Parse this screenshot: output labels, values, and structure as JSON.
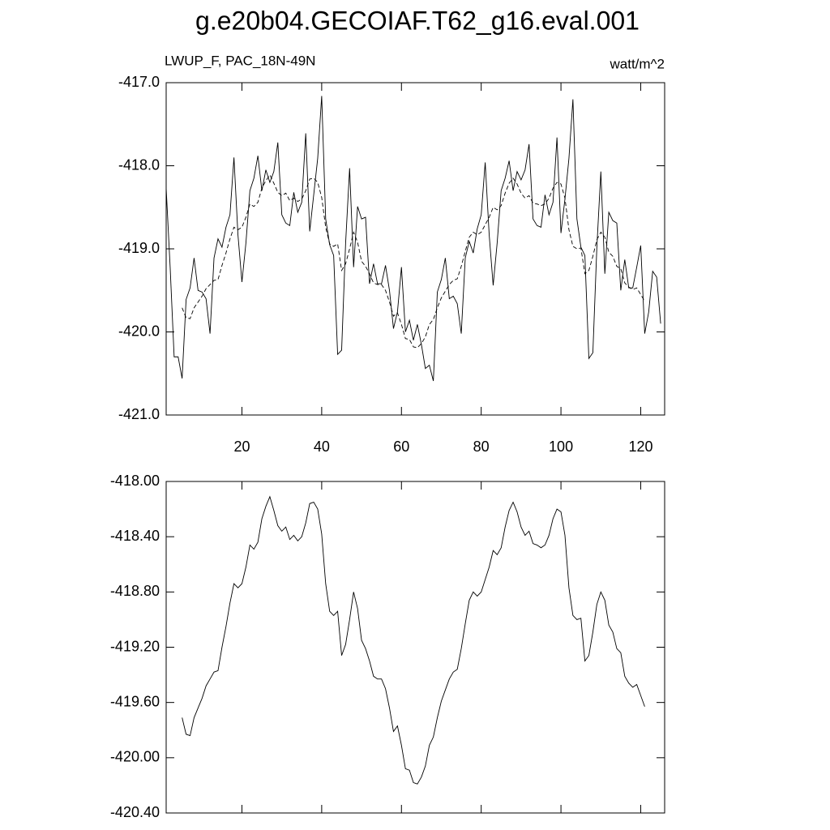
{
  "chart_data": [
    {
      "type": "line",
      "title": "g.e20b04.GECOIAF.T62_g16.eval.001",
      "left_subtitle": "LWUP_F, PAC_18N-49N",
      "right_subtitle": "watt/m^2",
      "xlim": [
        1,
        126
      ],
      "ylim": [
        -421,
        -417
      ],
      "xticks": [
        20,
        40,
        60,
        80,
        100,
        120
      ],
      "yticks": [
        {
          "value": -417,
          "label": "-417.0"
        },
        {
          "value": -418,
          "label": "-418.0"
        },
        {
          "value": -419,
          "label": "-419.0"
        },
        {
          "value": -420,
          "label": "-420.0"
        },
        {
          "value": -421,
          "label": "-421.0"
        }
      ],
      "series": [
        {
          "color": "#000000",
          "line_style": "solid",
          "x": [
            1,
            2,
            3,
            4,
            5,
            6,
            7,
            8,
            9,
            10,
            11,
            12,
            13,
            14,
            15,
            16,
            17,
            18,
            19,
            20,
            21,
            22,
            23,
            24,
            25,
            26,
            27,
            28,
            29,
            30,
            31,
            32,
            33,
            34,
            35,
            36,
            37,
            38,
            39,
            40,
            41,
            42,
            43,
            44,
            45,
            46,
            47,
            48,
            49,
            50,
            51,
            52,
            53,
            54,
            55,
            56,
            57,
            58,
            59,
            60,
            61,
            62,
            63,
            64,
            65,
            66,
            67,
            68,
            69,
            70,
            71,
            72,
            73,
            74,
            75,
            76,
            77,
            78,
            79,
            80,
            81,
            82,
            83,
            84,
            85,
            86,
            87,
            88,
            89,
            90,
            91,
            92,
            93,
            94,
            95,
            96,
            97,
            98,
            99,
            100,
            101,
            102,
            103,
            104,
            105,
            106,
            107,
            108,
            109,
            110,
            111,
            112,
            113,
            114,
            115,
            116,
            117,
            118,
            119,
            120,
            121,
            122,
            123,
            124,
            125
          ],
          "values": [
            -418.27,
            -419.22,
            -420.3,
            -420.3,
            -420.56,
            -419.61,
            -419.47,
            -419.11,
            -419.5,
            -419.52,
            -419.6,
            -420.02,
            -419.11,
            -418.88,
            -418.98,
            -418.74,
            -418.59,
            -417.9,
            -418.83,
            -419.4,
            -418.93,
            -418.3,
            -418.15,
            -417.88,
            -418.3,
            -418.05,
            -418.2,
            -418.07,
            -417.72,
            -418.59,
            -418.69,
            -418.72,
            -418.32,
            -418.56,
            -418.44,
            -417.61,
            -418.79,
            -418.35,
            -417.91,
            -417.16,
            -418.64,
            -418.95,
            -419.08,
            -420.27,
            -420.22,
            -418.93,
            -418.03,
            -419.22,
            -418.49,
            -418.64,
            -418.62,
            -419.42,
            -419.18,
            -419.42,
            -419.42,
            -419.2,
            -419.5,
            -419.96,
            -419.76,
            -419.22,
            -420.0,
            -419.86,
            -420.1,
            -419.91,
            -420.15,
            -420.44,
            -420.4,
            -420.59,
            -419.52,
            -419.37,
            -419.11,
            -419.6,
            -419.57,
            -419.66,
            -420.02,
            -419.11,
            -418.91,
            -419.05,
            -418.76,
            -418.59,
            -417.96,
            -418.83,
            -419.44,
            -418.93,
            -418.3,
            -418.15,
            -417.94,
            -418.3,
            -418.07,
            -418.17,
            -418.05,
            -417.74,
            -418.64,
            -418.72,
            -418.74,
            -418.35,
            -418.59,
            -418.44,
            -417.66,
            -418.81,
            -418.4,
            -417.91,
            -417.2,
            -418.64,
            -418.98,
            -419.08,
            -420.32,
            -420.25,
            -418.98,
            -418.07,
            -419.3,
            -418.56,
            -418.66,
            -418.69,
            -419.5,
            -419.13,
            -419.47,
            -419.47,
            -419.22,
            -418.96,
            -420.02,
            -419.76,
            -419.27,
            -419.34,
            -419.9
          ]
        },
        {
          "color": "#000000",
          "line_style": "dashed",
          "x": [
            5,
            6,
            7,
            8,
            9,
            10,
            11,
            12,
            13,
            14,
            15,
            16,
            17,
            18,
            19,
            20,
            21,
            22,
            23,
            24,
            25,
            26,
            27,
            28,
            29,
            30,
            31,
            32,
            33,
            34,
            35,
            36,
            37,
            38,
            39,
            40,
            41,
            42,
            43,
            44,
            45,
            46,
            47,
            48,
            49,
            50,
            51,
            52,
            53,
            54,
            55,
            56,
            57,
            58,
            59,
            60,
            61,
            62,
            63,
            64,
            65,
            66,
            67,
            68,
            69,
            70,
            71,
            72,
            73,
            74,
            75,
            76,
            77,
            78,
            79,
            80,
            81,
            82,
            83,
            84,
            85,
            86,
            87,
            88,
            89,
            90,
            91,
            92,
            93,
            94,
            95,
            96,
            97,
            98,
            99,
            100,
            101,
            102,
            103,
            104,
            105,
            106,
            107,
            108,
            109,
            110,
            111,
            112,
            113,
            114,
            115,
            116,
            117,
            118,
            119,
            120,
            121
          ],
          "values": [
            -419.71,
            -419.83,
            -419.84,
            -419.71,
            -419.64,
            -419.57,
            -419.48,
            -419.43,
            -419.38,
            -419.37,
            -419.2,
            -419.05,
            -418.88,
            -418.74,
            -418.77,
            -418.74,
            -418.62,
            -418.46,
            -418.49,
            -418.44,
            -418.27,
            -418.18,
            -418.11,
            -418.21,
            -418.32,
            -418.36,
            -418.33,
            -418.42,
            -418.39,
            -418.43,
            -418.4,
            -418.3,
            -418.16,
            -418.15,
            -418.2,
            -418.38,
            -418.74,
            -418.94,
            -418.97,
            -418.94,
            -419.26,
            -419.18,
            -419.0,
            -418.8,
            -418.92,
            -419.15,
            -419.21,
            -419.3,
            -419.41,
            -419.43,
            -419.43,
            -419.5,
            -419.64,
            -419.81,
            -419.77,
            -419.91,
            -420.08,
            -420.09,
            -420.18,
            -420.19,
            -420.14,
            -420.06,
            -419.91,
            -419.85,
            -419.71,
            -419.59,
            -419.51,
            -419.43,
            -419.38,
            -419.36,
            -419.21,
            -419.03,
            -418.86,
            -418.8,
            -418.83,
            -418.8,
            -418.71,
            -418.62,
            -418.5,
            -418.53,
            -418.48,
            -418.33,
            -418.21,
            -418.15,
            -418.22,
            -418.33,
            -418.39,
            -418.36,
            -418.45,
            -418.46,
            -418.48,
            -418.46,
            -418.39,
            -418.27,
            -418.2,
            -418.22,
            -418.39,
            -418.77,
            -418.97,
            -419.0,
            -418.99,
            -419.3,
            -419.26,
            -419.09,
            -418.89,
            -418.8,
            -418.86,
            -419.04,
            -419.09,
            -419.21,
            -419.24,
            -419.41,
            -419.46,
            -419.49,
            -419.47,
            -419.55,
            -419.63
          ]
        }
      ]
    },
    {
      "type": "line",
      "xlim": [
        1,
        126
      ],
      "ylim": [
        -420.4,
        -418
      ],
      "xticks": [
        20,
        40,
        60,
        80,
        100,
        120
      ],
      "yticks": [
        {
          "value": -418,
          "label": "-418.00"
        },
        {
          "value": -418.4,
          "label": "-418.40"
        },
        {
          "value": -418.8,
          "label": "-418.80"
        },
        {
          "value": -419.2,
          "label": "-419.20"
        },
        {
          "value": -419.6,
          "label": "-419.60"
        },
        {
          "value": -420,
          "label": "-420.00"
        },
        {
          "value": -420.4,
          "label": "-420.40"
        }
      ],
      "series": [
        {
          "color": "#000000",
          "line_style": "solid",
          "x": [
            5,
            6,
            7,
            8,
            9,
            10,
            11,
            12,
            13,
            14,
            15,
            16,
            17,
            18,
            19,
            20,
            21,
            22,
            23,
            24,
            25,
            26,
            27,
            28,
            29,
            30,
            31,
            32,
            33,
            34,
            35,
            36,
            37,
            38,
            39,
            40,
            41,
            42,
            43,
            44,
            45,
            46,
            47,
            48,
            49,
            50,
            51,
            52,
            53,
            54,
            55,
            56,
            57,
            58,
            59,
            60,
            61,
            62,
            63,
            64,
            65,
            66,
            67,
            68,
            69,
            70,
            71,
            72,
            73,
            74,
            75,
            76,
            77,
            78,
            79,
            80,
            81,
            82,
            83,
            84,
            85,
            86,
            87,
            88,
            89,
            90,
            91,
            92,
            93,
            94,
            95,
            96,
            97,
            98,
            99,
            100,
            101,
            102,
            103,
            104,
            105,
            106,
            107,
            108,
            109,
            110,
            111,
            112,
            113,
            114,
            115,
            116,
            117,
            118,
            119,
            120,
            121
          ],
          "values": [
            -419.71,
            -419.83,
            -419.84,
            -419.71,
            -419.64,
            -419.57,
            -419.48,
            -419.43,
            -419.38,
            -419.37,
            -419.2,
            -419.05,
            -418.88,
            -418.74,
            -418.77,
            -418.74,
            -418.62,
            -418.46,
            -418.49,
            -418.44,
            -418.27,
            -418.18,
            -418.11,
            -418.21,
            -418.32,
            -418.36,
            -418.33,
            -418.42,
            -418.39,
            -418.43,
            -418.4,
            -418.3,
            -418.16,
            -418.15,
            -418.2,
            -418.38,
            -418.74,
            -418.94,
            -418.97,
            -418.94,
            -419.26,
            -419.18,
            -419.0,
            -418.8,
            -418.92,
            -419.15,
            -419.21,
            -419.3,
            -419.41,
            -419.43,
            -419.43,
            -419.5,
            -419.64,
            -419.81,
            -419.77,
            -419.91,
            -420.08,
            -420.09,
            -420.18,
            -420.19,
            -420.14,
            -420.06,
            -419.91,
            -419.85,
            -419.71,
            -419.59,
            -419.51,
            -419.43,
            -419.38,
            -419.36,
            -419.21,
            -419.03,
            -418.86,
            -418.8,
            -418.83,
            -418.8,
            -418.71,
            -418.62,
            -418.5,
            -418.53,
            -418.48,
            -418.33,
            -418.21,
            -418.15,
            -418.22,
            -418.33,
            -418.39,
            -418.36,
            -418.45,
            -418.46,
            -418.48,
            -418.46,
            -418.39,
            -418.27,
            -418.2,
            -418.22,
            -418.39,
            -418.77,
            -418.97,
            -419.0,
            -418.99,
            -419.3,
            -419.26,
            -419.09,
            -418.89,
            -418.8,
            -418.86,
            -419.04,
            -419.09,
            -419.21,
            -419.24,
            -419.41,
            -419.46,
            -419.49,
            -419.47,
            -419.55,
            -419.63
          ]
        }
      ]
    }
  ]
}
